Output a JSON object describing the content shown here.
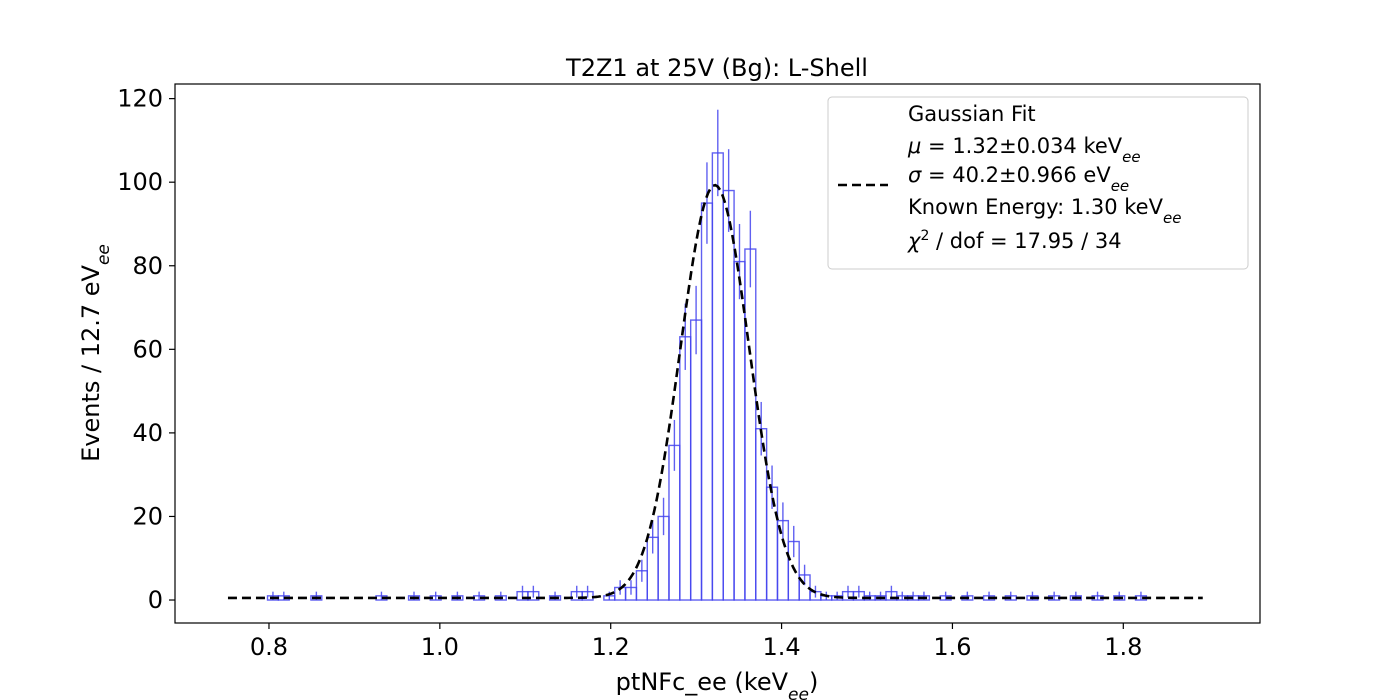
{
  "chart_data": {
    "type": "histogram",
    "title": "T2Z1 at 25V (Bg): L-Shell",
    "xlabel": {
      "base": "ptNFc_ee (keV",
      "sub": "ee",
      "tail": ")"
    },
    "ylabel": {
      "base": "Events / 12.7 eV",
      "sub": "ee"
    },
    "xlim": [
      0.69,
      1.96
    ],
    "ylim": [
      -5.5,
      123.5
    ],
    "xticks": [
      0.8,
      1.0,
      1.2,
      1.4,
      1.6,
      1.8
    ],
    "xtick_labels": [
      "0.8",
      "1.0",
      "1.2",
      "1.4",
      "1.6",
      "1.8"
    ],
    "yticks": [
      0,
      20,
      40,
      60,
      80,
      100,
      120
    ],
    "ytick_labels": [
      "0",
      "20",
      "40",
      "60",
      "80",
      "100",
      "120"
    ],
    "grid": false,
    "legend_position": "upper-right",
    "colors": {
      "histogram": "#4444ee",
      "fit": "#000000",
      "legend_border": "#cccccc"
    },
    "histogram": {
      "bin_width": 0.0127,
      "bin_lefts": [
        0.7983,
        0.811,
        0.8237,
        0.8364,
        0.8491,
        0.8618,
        0.8745,
        0.8872,
        0.8999,
        0.9126,
        0.9253,
        0.938,
        0.9507,
        0.9634,
        0.9761,
        0.9888,
        1.0015,
        1.0142,
        1.0269,
        1.0396,
        1.0523,
        1.065,
        1.0777,
        1.0904,
        1.1031,
        1.1158,
        1.1285,
        1.1412,
        1.1539,
        1.1666,
        1.1793,
        1.192,
        1.2047,
        1.2174,
        1.2301,
        1.2428,
        1.2555,
        1.2682,
        1.2809,
        1.2936,
        1.3063,
        1.319,
        1.3317,
        1.3444,
        1.3571,
        1.3698,
        1.3825,
        1.3952,
        1.4079,
        1.4206,
        1.4333,
        1.446,
        1.4587,
        1.4714,
        1.4841,
        1.4968,
        1.5095,
        1.5222,
        1.5349,
        1.5476,
        1.5603,
        1.573,
        1.5857,
        1.5984,
        1.6111,
        1.6238,
        1.6365,
        1.6492,
        1.6619,
        1.6746,
        1.6873,
        1.7,
        1.7127,
        1.7254,
        1.7381,
        1.7508,
        1.7635,
        1.7762,
        1.7889,
        1.8016,
        1.8143,
        1.827
      ],
      "counts": [
        1,
        1,
        0,
        0,
        1,
        0,
        0,
        0,
        0,
        0,
        1,
        0,
        0,
        1,
        0,
        1,
        0,
        1,
        0,
        1,
        0,
        1,
        0,
        2,
        2,
        0,
        1,
        0,
        2,
        2,
        0,
        1,
        3,
        3,
        7,
        15,
        20,
        37,
        63,
        67,
        95,
        107,
        98,
        81,
        84,
        41,
        27,
        19,
        14,
        6,
        2,
        1,
        1,
        2,
        2,
        1,
        1,
        2,
        1,
        1,
        1,
        0,
        1,
        0,
        1,
        0,
        1,
        0,
        1,
        0,
        1,
        0,
        1,
        0,
        1,
        0,
        1,
        0,
        1,
        0,
        1,
        0
      ]
    },
    "fit": {
      "type": "gaussian",
      "mu": 1.3219,
      "sigma": 0.0402,
      "amplitude": 98.8,
      "baseline": 0.5,
      "x_range": [
        0.752,
        1.893
      ]
    },
    "legend": {
      "line_label": "Gaussian Fit",
      "mu": {
        "prefix": "μ = ",
        "value": "1.32±0.034 keV",
        "sub": "ee"
      },
      "sigma": {
        "prefix": "σ = ",
        "value": "40.2±0.966 eV",
        "sub": "ee"
      },
      "known": {
        "value": "Known Energy: 1.30 keV",
        "sub": "ee"
      },
      "chi2": {
        "prefix": "χ",
        "sup": "2",
        "value": " / dof = 17.95 / 34"
      }
    }
  }
}
